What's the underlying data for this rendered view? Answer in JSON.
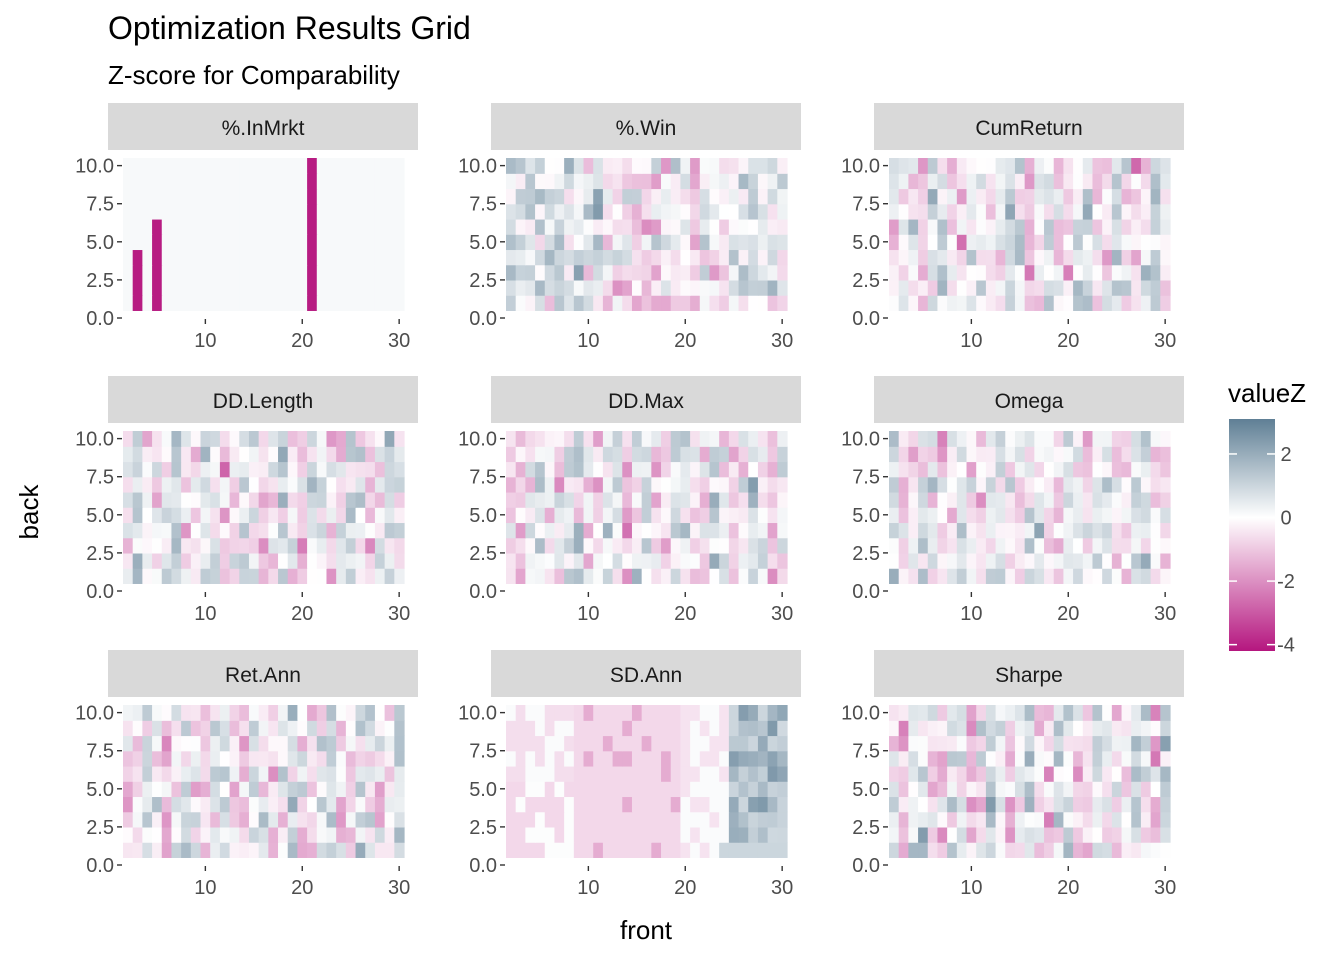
{
  "chart_data": {
    "type": "heatmap",
    "title": "Optimization Results Grid",
    "subtitle": "Z-score for Comparability",
    "xlabel": "front",
    "ylabel": "back",
    "x_ticks": [
      10,
      20,
      30
    ],
    "y_ticks": [
      "0.0",
      "2.5",
      "5.0",
      "7.5",
      "10.0"
    ],
    "xlim": [
      2,
      30
    ],
    "ylim": [
      1,
      10
    ],
    "legend": {
      "title": "valueZ",
      "ticks": [
        2,
        0,
        -2,
        -4
      ],
      "range": [
        -4.2,
        3.1
      ],
      "low_color": "#b5167f",
      "mid_color": "#ffffff",
      "high_color": "#5f7f95",
      "placement": "right"
    },
    "facets": [
      "%.InMrkt",
      "%.Win",
      "CumReturn",
      "DD.Length",
      "DD.Max",
      "Omega",
      "Ret.Ann",
      "SD.Ann",
      "Sharpe"
    ],
    "strip_color": "#d9d9d9"
  }
}
